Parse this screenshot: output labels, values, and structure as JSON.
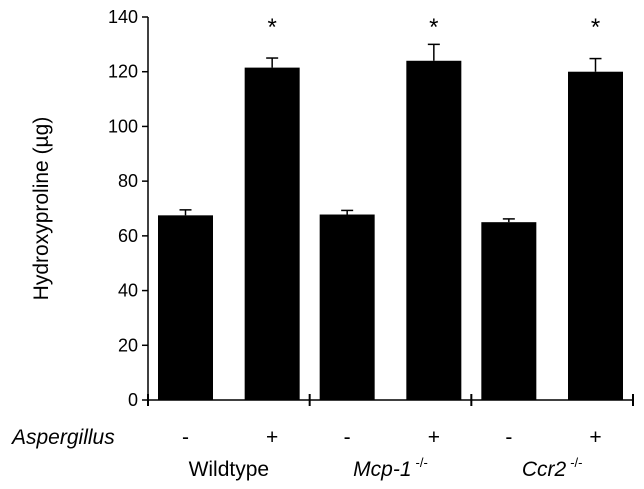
{
  "chart_data": {
    "type": "bar",
    "ylabel": "Hydroxyproline (µg)",
    "ylim": [
      0,
      140
    ],
    "yticks": [
      0,
      20,
      40,
      60,
      80,
      100,
      120,
      140
    ],
    "row_label": "Aspergillus",
    "bars": [
      {
        "group": 0,
        "sign": "-",
        "value": 67.5,
        "error": 2.0,
        "significant": false
      },
      {
        "group": 0,
        "sign": "+",
        "value": 121.5,
        "error": 3.5,
        "significant": true
      },
      {
        "group": 1,
        "sign": "-",
        "value": 67.8,
        "error": 1.5,
        "significant": false
      },
      {
        "group": 1,
        "sign": "+",
        "value": 124.0,
        "error": 6.0,
        "significant": true
      },
      {
        "group": 2,
        "sign": "-",
        "value": 65.0,
        "error": 1.2,
        "significant": false
      },
      {
        "group": 2,
        "sign": "+",
        "value": 120.0,
        "error": 4.8,
        "significant": true
      }
    ],
    "groups": [
      {
        "name": "Wildtype",
        "italic": false,
        "superscript": ""
      },
      {
        "name": "Mcp-1",
        "italic": true,
        "superscript": "-/-"
      },
      {
        "name": "Ccr2",
        "italic": true,
        "superscript": "-/-"
      }
    ],
    "significance_marker": "*",
    "bar_color": "#000000",
    "grid": false,
    "legend": "none"
  }
}
